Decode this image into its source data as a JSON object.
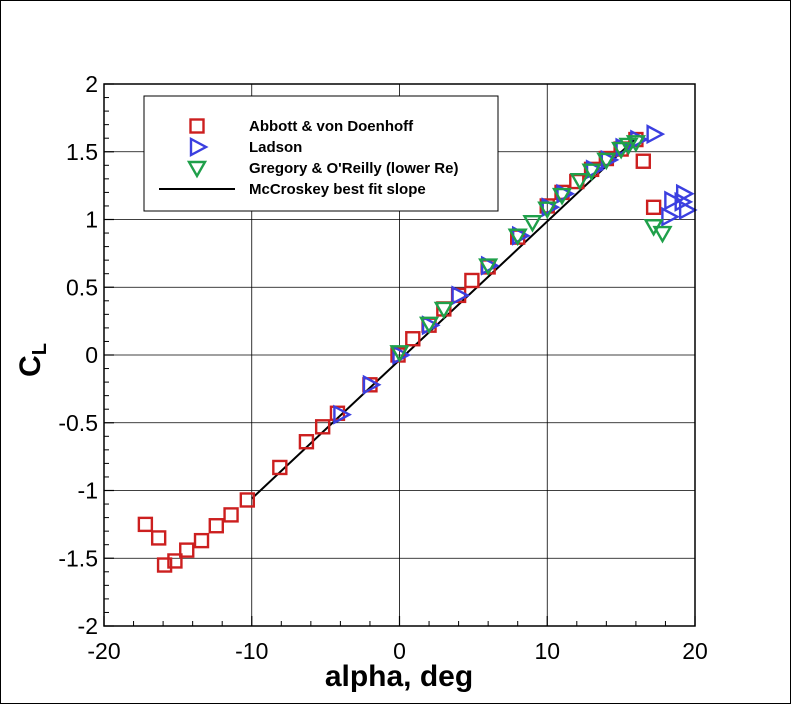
{
  "chart_data": {
    "type": "scatter",
    "xlabel": "alpha, deg",
    "ylabel_main": "C",
    "ylabel_sub": "L",
    "xlim": [
      -20,
      20
    ],
    "ylim": [
      -2,
      2
    ],
    "x_ticks": [
      -20,
      -10,
      0,
      10,
      20
    ],
    "y_ticks": [
      -2,
      -1.5,
      -1,
      -0.5,
      0,
      0.5,
      1,
      1.5,
      2
    ],
    "x_tick_labels": [
      "-20",
      "-10",
      "0",
      "10",
      "20"
    ],
    "y_tick_labels": [
      "-2",
      "-1.5",
      "-1",
      "-0.5",
      "0",
      "0.5",
      "1",
      "1.5",
      "2"
    ],
    "grid": true,
    "legend_position": "top-left",
    "series": [
      {
        "name": "Abbott & von Doenhoff",
        "marker": "square",
        "color": "#cc1f1f",
        "points": [
          [
            -17.2,
            -1.25
          ],
          [
            -16.3,
            -1.35
          ],
          [
            -15.9,
            -1.55
          ],
          [
            -15.2,
            -1.52
          ],
          [
            -14.4,
            -1.44
          ],
          [
            -13.4,
            -1.37
          ],
          [
            -12.4,
            -1.26
          ],
          [
            -11.4,
            -1.18
          ],
          [
            -10.3,
            -1.07
          ],
          [
            -8.1,
            -0.83
          ],
          [
            -6.3,
            -0.64
          ],
          [
            -5.2,
            -0.53
          ],
          [
            -4.2,
            -0.43
          ],
          [
            -2.0,
            -0.22
          ],
          [
            -0.1,
            0.0
          ],
          [
            0.9,
            0.12
          ],
          [
            2.0,
            0.22
          ],
          [
            3.0,
            0.34
          ],
          [
            4.0,
            0.44
          ],
          [
            4.9,
            0.55
          ],
          [
            6.0,
            0.65
          ],
          [
            8.0,
            0.87
          ],
          [
            10.0,
            1.1
          ],
          [
            11.0,
            1.2
          ],
          [
            12.0,
            1.28
          ],
          [
            13.0,
            1.37
          ],
          [
            14.0,
            1.45
          ],
          [
            15.0,
            1.52
          ],
          [
            16.0,
            1.59
          ],
          [
            16.5,
            1.43
          ],
          [
            17.2,
            1.09
          ]
        ]
      },
      {
        "name": "Ladson",
        "marker": "triangle-right",
        "color": "#3b3fe0",
        "points": [
          [
            -4.0,
            -0.44
          ],
          [
            -2.0,
            -0.22
          ],
          [
            0.0,
            0.0
          ],
          [
            2.0,
            0.22
          ],
          [
            4.0,
            0.44
          ],
          [
            6.0,
            0.66
          ],
          [
            8.1,
            0.88
          ],
          [
            10.1,
            1.09
          ],
          [
            11.1,
            1.19
          ],
          [
            13.1,
            1.37
          ],
          [
            14.1,
            1.44
          ],
          [
            15.1,
            1.53
          ],
          [
            16.1,
            1.59
          ],
          [
            17.2,
            1.63
          ],
          [
            18.2,
            1.02
          ],
          [
            18.4,
            1.14
          ],
          [
            19.2,
            1.19
          ],
          [
            19.4,
            1.07
          ],
          [
            19.1,
            1.13
          ]
        ]
      },
      {
        "name": "Gregory & O'Reilly (lower Re)",
        "marker": "triangle-down",
        "color": "#1fa04a",
        "points": [
          [
            0.0,
            0.02
          ],
          [
            2.0,
            0.23
          ],
          [
            3.0,
            0.34
          ],
          [
            6.0,
            0.66
          ],
          [
            8.0,
            0.88
          ],
          [
            9.0,
            0.98
          ],
          [
            10.0,
            1.08
          ],
          [
            11.0,
            1.18
          ],
          [
            12.2,
            1.29
          ],
          [
            13.0,
            1.36
          ],
          [
            14.0,
            1.44
          ],
          [
            15.0,
            1.52
          ],
          [
            15.5,
            1.55
          ],
          [
            16.0,
            1.57
          ],
          [
            17.2,
            0.95
          ],
          [
            17.8,
            0.9
          ]
        ]
      },
      {
        "name": "McCroskey best fit slope",
        "marker": "line",
        "color": "#000000",
        "points": [
          [
            -10.0,
            -1.06
          ],
          [
            16.0,
            1.6
          ]
        ]
      }
    ]
  }
}
